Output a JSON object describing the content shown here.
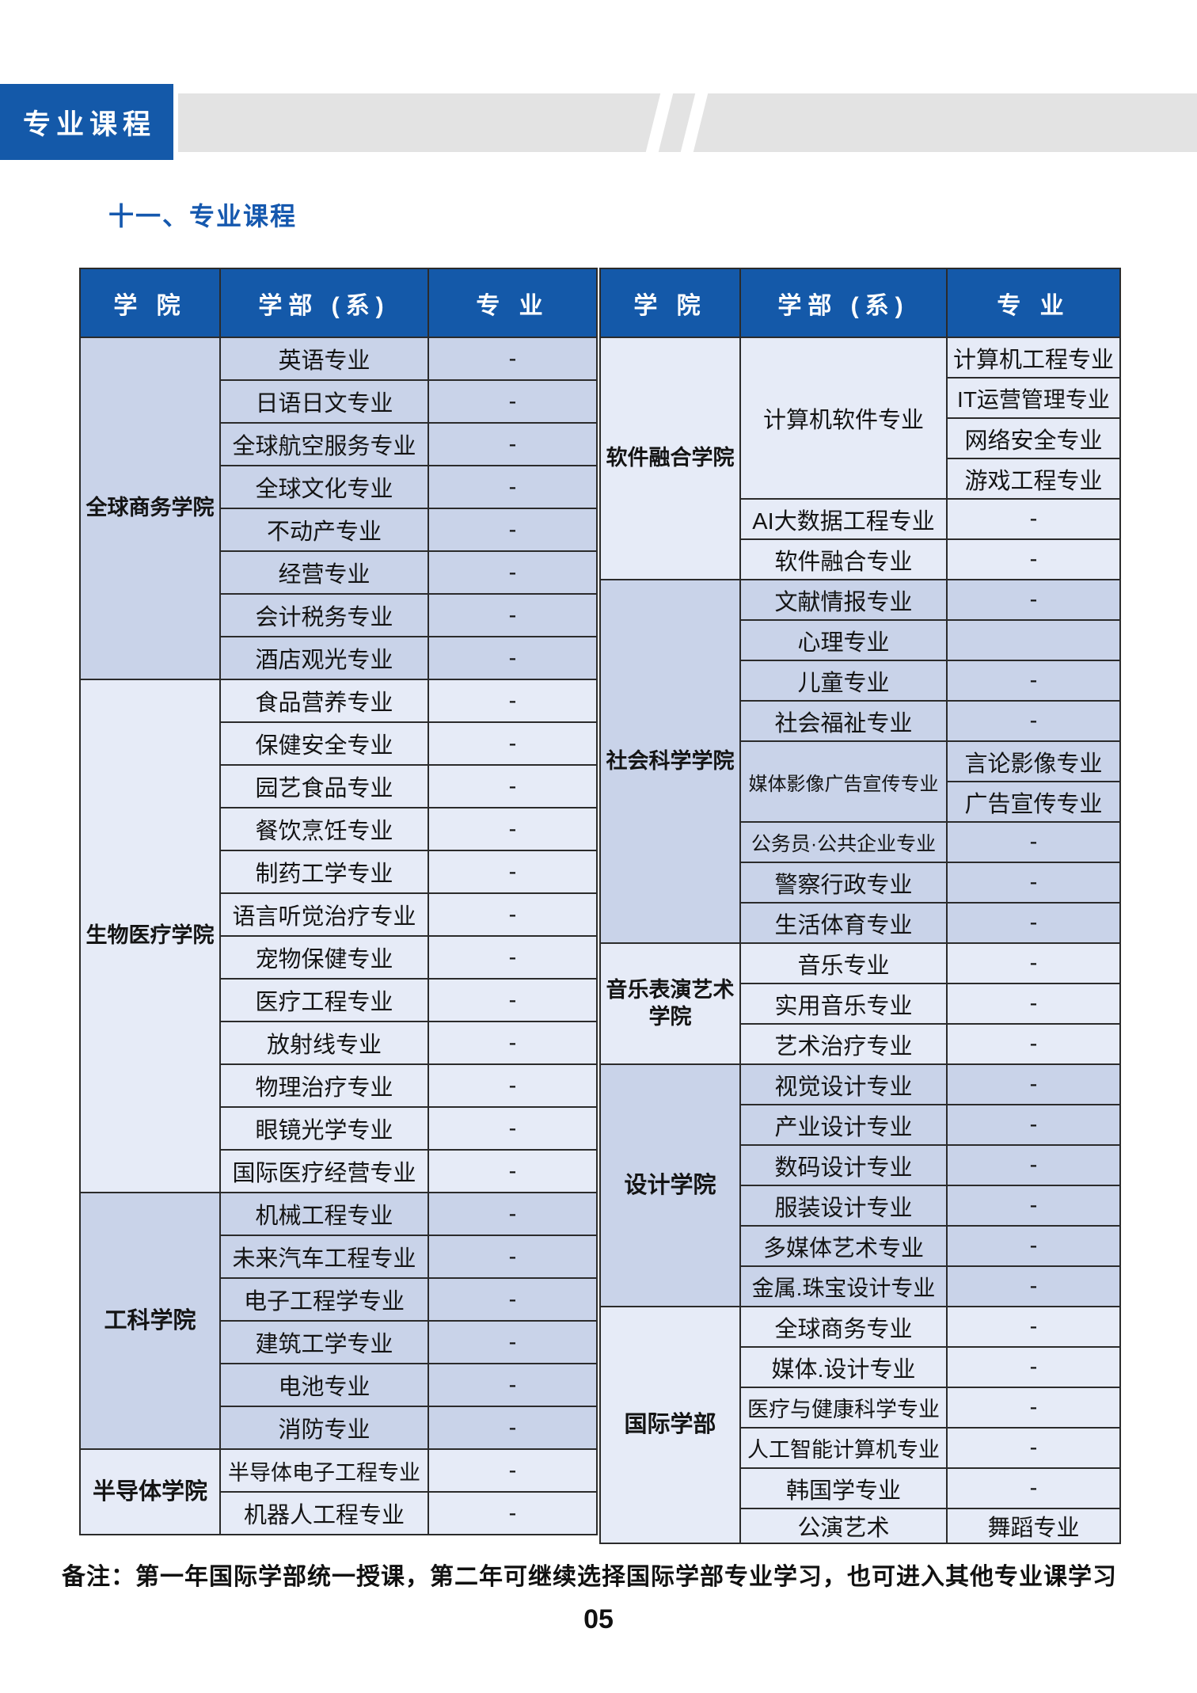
{
  "banner": {
    "label": "专业课程"
  },
  "section_title": "十一、专业课程",
  "colors": {
    "header_blue": "#1459A9",
    "title_blue": "#1558AE",
    "group_shade_dark": "#C9D3E9",
    "group_shade_light": "#E6EBF7",
    "stripe_gray": "#E3E3E3",
    "border": "#2B2B2B"
  },
  "tables": [
    {
      "headers": [
        "学 院",
        "学部 (系)",
        "专 业"
      ],
      "groups": [
        {
          "college": "全球商务学院",
          "shade": "dark",
          "depts": [
            {
              "name": "英语专业",
              "majors": [
                "-"
              ]
            },
            {
              "name": "日语日文专业",
              "majors": [
                "-"
              ]
            },
            {
              "name": "全球航空服务专业",
              "majors": [
                "-"
              ]
            },
            {
              "name": "全球文化专业",
              "majors": [
                "-"
              ]
            },
            {
              "name": "不动产专业",
              "majors": [
                "-"
              ]
            },
            {
              "name": "经营专业",
              "majors": [
                "-"
              ]
            },
            {
              "name": "会计税务专业",
              "majors": [
                "-"
              ]
            },
            {
              "name": "酒店观光专业",
              "majors": [
                "-"
              ]
            }
          ]
        },
        {
          "college": "生物医疗学院",
          "shade": "light",
          "depts": [
            {
              "name": "食品营养专业",
              "majors": [
                "-"
              ]
            },
            {
              "name": "保健安全专业",
              "majors": [
                "-"
              ]
            },
            {
              "name": "园艺食品专业",
              "majors": [
                "-"
              ]
            },
            {
              "name": "餐饮烹饪专业",
              "majors": [
                "-"
              ]
            },
            {
              "name": "制药工学专业",
              "majors": [
                "-"
              ]
            },
            {
              "name": "语言听觉治疗专业",
              "majors": [
                "-"
              ]
            },
            {
              "name": "宠物保健专业",
              "majors": [
                "-"
              ]
            },
            {
              "name": "医疗工程专业",
              "majors": [
                "-"
              ]
            },
            {
              "name": "放射线专业",
              "majors": [
                "-"
              ]
            },
            {
              "name": "物理治疗专业",
              "majors": [
                "-"
              ]
            },
            {
              "name": "眼镜光学专业",
              "majors": [
                "-"
              ]
            },
            {
              "name": "国际医疗经营专业",
              "majors": [
                "-"
              ]
            }
          ]
        },
        {
          "college": "工科学院",
          "shade": "dark",
          "depts": [
            {
              "name": "机械工程专业",
              "majors": [
                "-"
              ]
            },
            {
              "name": "未来汽车工程专业",
              "majors": [
                "-"
              ]
            },
            {
              "name": "电子工程学专业",
              "majors": [
                "-"
              ]
            },
            {
              "name": "建筑工学专业",
              "majors": [
                "-"
              ]
            },
            {
              "name": "电池专业",
              "majors": [
                "-"
              ]
            },
            {
              "name": "消防专业",
              "majors": [
                "-"
              ]
            }
          ]
        },
        {
          "college": "半导体学院",
          "shade": "light",
          "depts": [
            {
              "name": "半导体电子工程专业",
              "majors": [
                "-"
              ]
            },
            {
              "name": "机器人工程专业",
              "majors": [
                "-"
              ]
            }
          ]
        }
      ]
    },
    {
      "headers": [
        "学 院",
        "学部 (系)",
        "专 业"
      ],
      "groups": [
        {
          "college": "软件融合学院",
          "shade": "light",
          "depts": [
            {
              "name": "计算机软件专业",
              "majors": [
                "计算机工程专业",
                "IT运营管理专业",
                "网络安全专业",
                "游戏工程专业"
              ]
            },
            {
              "name": "AI大数据工程专业",
              "majors": [
                "-"
              ]
            },
            {
              "name": "软件融合专业",
              "majors": [
                "-"
              ]
            }
          ]
        },
        {
          "college": "社会科学学院",
          "shade": "dark",
          "depts": [
            {
              "name": "文献情报专业",
              "majors": [
                "-"
              ]
            },
            {
              "name": "心理专业",
              "majors": [
                ""
              ]
            },
            {
              "name": "儿童专业",
              "majors": [
                "-"
              ]
            },
            {
              "name": "社会福祉专业",
              "majors": [
                "-"
              ]
            },
            {
              "name": "媒体影像广告宣传专业",
              "majors": [
                "言论影像专业",
                "广告宣传专业"
              ]
            },
            {
              "name": "公务员·公共企业专业",
              "majors": [
                "-"
              ]
            },
            {
              "name": "警察行政专业",
              "majors": [
                "-"
              ]
            },
            {
              "name": "生活体育专业",
              "majors": [
                "-"
              ]
            }
          ]
        },
        {
          "college": "音乐表演艺术\n学院",
          "shade": "light",
          "depts": [
            {
              "name": "音乐专业",
              "majors": [
                "-"
              ]
            },
            {
              "name": "实用音乐专业",
              "majors": [
                "-"
              ]
            },
            {
              "name": "艺术治疗专业",
              "majors": [
                "-"
              ]
            }
          ]
        },
        {
          "college": "设计学院",
          "shade": "dark",
          "depts": [
            {
              "name": "视觉设计专业",
              "majors": [
                "-"
              ]
            },
            {
              "name": "产业设计专业",
              "majors": [
                "-"
              ]
            },
            {
              "name": "数码设计专业",
              "majors": [
                "-"
              ]
            },
            {
              "name": "服装设计专业",
              "majors": [
                "-"
              ]
            },
            {
              "name": "多媒体艺术专业",
              "majors": [
                "-"
              ]
            },
            {
              "name": "金属.珠宝设计专业",
              "majors": [
                "-"
              ]
            }
          ]
        },
        {
          "college": "国际学部",
          "shade": "light",
          "depts": [
            {
              "name": "全球商务专业",
              "majors": [
                "-"
              ]
            },
            {
              "name": "媒体.设计专业",
              "majors": [
                "-"
              ]
            },
            {
              "name": "医疗与健康科学专业",
              "majors": [
                "-"
              ]
            },
            {
              "name": "人工智能计算机专业",
              "majors": [
                "-"
              ]
            },
            {
              "name": "韩国学专业",
              "majors": [
                "-"
              ]
            },
            {
              "name": "公演艺术",
              "majors": [
                "舞蹈专业"
              ]
            }
          ]
        }
      ]
    }
  ],
  "note": "备注：第一年国际学部统一授课，第二年可继续选择国际学部专业学习，也可进入其他专业课学习",
  "page_number": "05"
}
